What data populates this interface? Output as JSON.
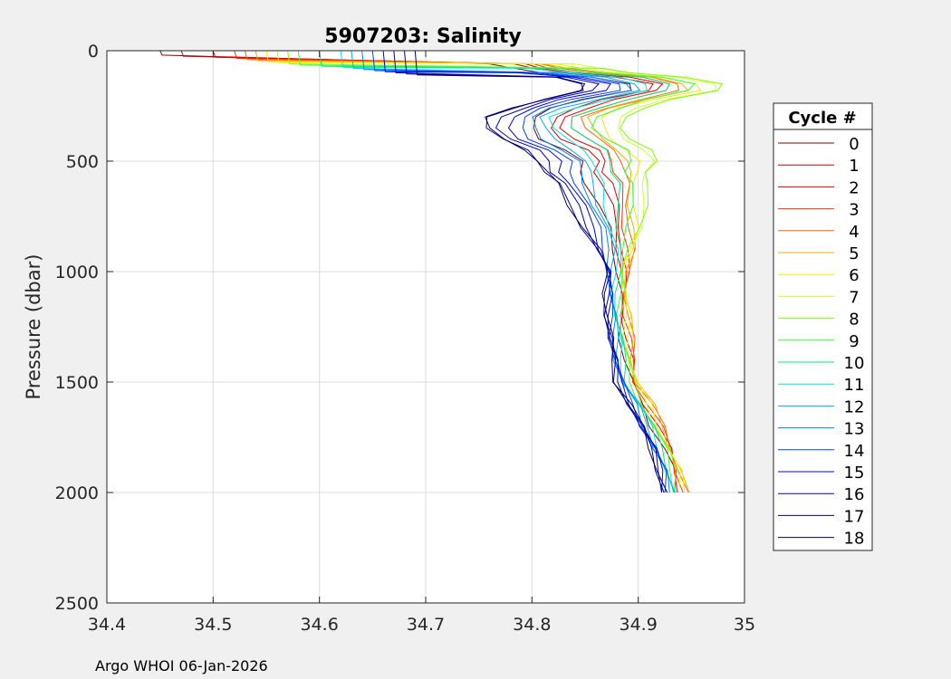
{
  "chart_data": {
    "type": "line",
    "title": "5907203:  Salinity",
    "xlabel": "",
    "ylabel": "Pressure (dbar)",
    "xlim": [
      34.4,
      35
    ],
    "ylim": [
      0,
      2500
    ],
    "y_reversed": true,
    "grid": true,
    "x_ticks": [
      34.4,
      34.5,
      34.6,
      34.7,
      34.8,
      34.9,
      35
    ],
    "x_tick_labels": [
      "34.4",
      "34.5",
      "34.6",
      "34.7",
      "34.8",
      "34.9",
      "35"
    ],
    "y_ticks": [
      0,
      500,
      1000,
      1500,
      2000,
      2500
    ],
    "y_tick_labels": [
      "0",
      "500",
      "1000",
      "1500",
      "2000",
      "2500"
    ],
    "legend": {
      "title": "Cycle #",
      "placement": "right-outside"
    },
    "footer": "Argo WHOI 06-Jan-2026",
    "base_profile": {
      "pressure": [
        60,
        80,
        100,
        120,
        150,
        180,
        220,
        260,
        300,
        350,
        400,
        450,
        500,
        550,
        600,
        700,
        800,
        900,
        1000,
        1100,
        1200,
        1300,
        1400,
        1500,
        1600,
        1700,
        1800,
        1900,
        2000
      ],
      "salinity": [
        34.78,
        34.8,
        34.83,
        34.88,
        34.91,
        34.91,
        34.87,
        34.84,
        34.82,
        34.82,
        34.83,
        34.85,
        34.86,
        34.86,
        34.865,
        34.87,
        34.875,
        34.878,
        34.878,
        34.878,
        34.879,
        34.881,
        34.884,
        34.888,
        34.9,
        34.91,
        34.92,
        34.928,
        34.932
      ]
    },
    "series": [
      {
        "name": "0",
        "color": "#800000",
        "surface_salinity": 34.45,
        "mixed_layer_depth": 20,
        "upper_offset": -0.02,
        "deep_offset": 0.004
      },
      {
        "name": "1",
        "color": "#cc0000",
        "surface_salinity": 34.47,
        "mixed_layer_depth": 25,
        "upper_offset": 0.0,
        "deep_offset": 0.006
      },
      {
        "name": "2",
        "color": "#e60000",
        "surface_salinity": 34.5,
        "mixed_layer_depth": 30,
        "upper_offset": 0.01,
        "deep_offset": 0.008
      },
      {
        "name": "3",
        "color": "#ff3300",
        "surface_salinity": 34.52,
        "mixed_layer_depth": 35,
        "upper_offset": 0.02,
        "deep_offset": 0.01
      },
      {
        "name": "4",
        "color": "#ff6600",
        "surface_salinity": 34.53,
        "mixed_layer_depth": 40,
        "upper_offset": 0.03,
        "deep_offset": 0.012
      },
      {
        "name": "5",
        "color": "#ffaa00",
        "surface_salinity": 34.54,
        "mixed_layer_depth": 45,
        "upper_offset": 0.035,
        "deep_offset": 0.012
      },
      {
        "name": "6",
        "color": "#ffe600",
        "surface_salinity": 34.55,
        "mixed_layer_depth": 50,
        "upper_offset": 0.045,
        "deep_offset": 0.01
      },
      {
        "name": "7",
        "color": "#ccff33",
        "surface_salinity": 34.56,
        "mixed_layer_depth": 55,
        "upper_offset": 0.06,
        "deep_offset": 0.008
      },
      {
        "name": "8",
        "color": "#80ff00",
        "surface_salinity": 34.57,
        "mixed_layer_depth": 60,
        "upper_offset": 0.065,
        "deep_offset": 0.006
      },
      {
        "name": "9",
        "color": "#33ff33",
        "surface_salinity": 34.58,
        "mixed_layer_depth": 65,
        "upper_offset": 0.04,
        "deep_offset": 0.004
      },
      {
        "name": "10",
        "color": "#00e680",
        "surface_salinity": 34.6,
        "mixed_layer_depth": 70,
        "upper_offset": 0.02,
        "deep_offset": 0.002
      },
      {
        "name": "11",
        "color": "#00e6e6",
        "surface_salinity": 34.62,
        "mixed_layer_depth": 75,
        "upper_offset": 0.0,
        "deep_offset": 0.0
      },
      {
        "name": "12",
        "color": "#00aaff",
        "surface_salinity": 34.63,
        "mixed_layer_depth": 80,
        "upper_offset": -0.01,
        "deep_offset": -0.002
      },
      {
        "name": "13",
        "color": "#0080ff",
        "surface_salinity": 34.64,
        "mixed_layer_depth": 85,
        "upper_offset": -0.02,
        "deep_offset": -0.004
      },
      {
        "name": "14",
        "color": "#0040ff",
        "surface_salinity": 34.65,
        "mixed_layer_depth": 90,
        "upper_offset": -0.03,
        "deep_offset": -0.005
      },
      {
        "name": "15",
        "color": "#0000e6",
        "surface_salinity": 34.66,
        "mixed_layer_depth": 95,
        "upper_offset": -0.04,
        "deep_offset": -0.006
      },
      {
        "name": "16",
        "color": "#0000b3",
        "surface_salinity": 34.67,
        "mixed_layer_depth": 100,
        "upper_offset": -0.05,
        "deep_offset": -0.007
      },
      {
        "name": "17",
        "color": "#000099",
        "surface_salinity": 34.68,
        "mixed_layer_depth": 105,
        "upper_offset": -0.06,
        "deep_offset": -0.008
      },
      {
        "name": "18",
        "color": "#000066",
        "surface_salinity": 34.69,
        "mixed_layer_depth": 110,
        "upper_offset": -0.06,
        "deep_offset": -0.008
      }
    ]
  }
}
